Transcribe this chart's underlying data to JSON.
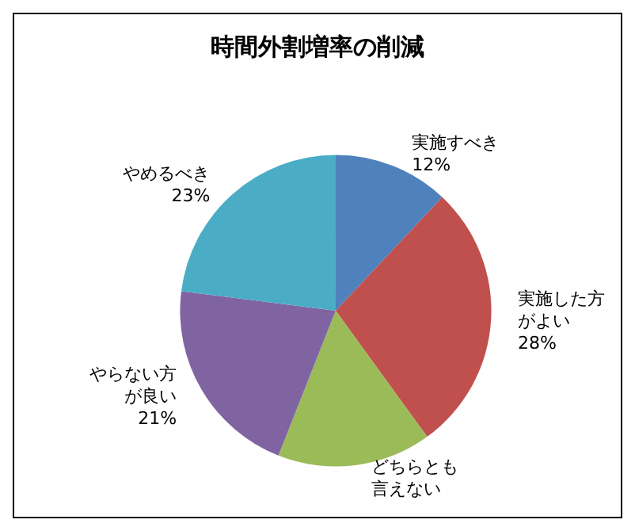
{
  "chart_data": {
    "type": "pie",
    "title": "時間外割増率の削減",
    "categories": [
      "実施すべき",
      "実施した方がよい",
      "どちらとも言えない",
      "やらない方が良い",
      "やめるべき"
    ],
    "values": [
      12,
      28,
      16,
      21,
      23
    ],
    "value_labels": [
      "12%",
      "28%",
      null,
      "21%",
      "23%"
    ],
    "colors": [
      "#4f81bd",
      "#c0504d",
      "#9bbb59",
      "#8064a2",
      "#4bacc6"
    ],
    "legend": false
  }
}
